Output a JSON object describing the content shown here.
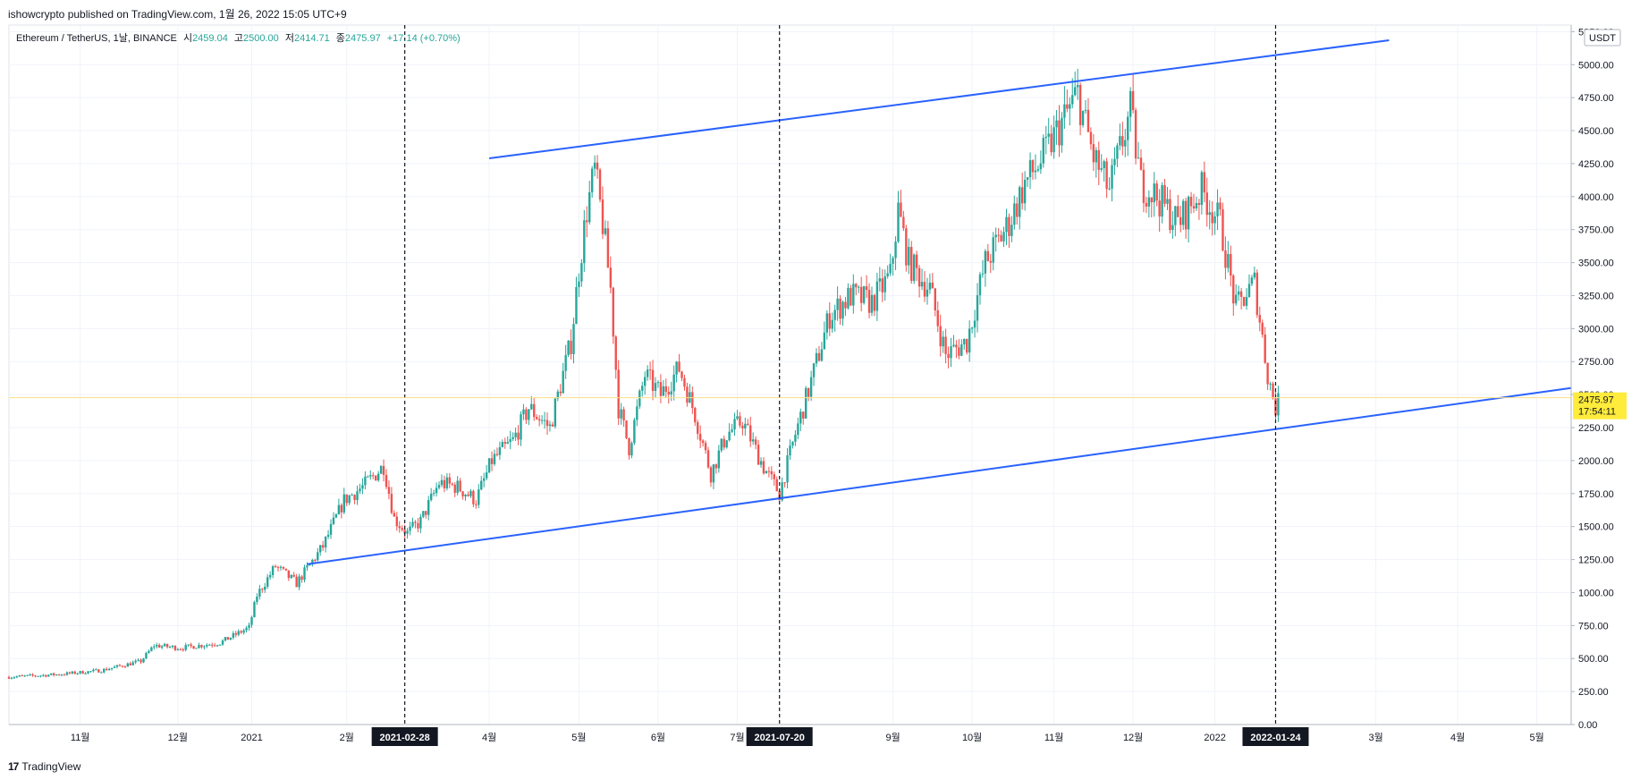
{
  "header": {
    "publisher": "ishowcrypto published on TradingView.com, 1월 26, 2022 15:05 UTC+9"
  },
  "legend": {
    "symbol": "Ethereum / TetherUS, 1날, BINANCE",
    "open_label": "시",
    "open": "2459.04",
    "high_label": "고",
    "high": "2500.00",
    "low_label": "저",
    "low": "2414.71",
    "close_label": "종",
    "close": "2475.97",
    "change": "+17.14 (+0.70%)"
  },
  "price_axis": {
    "currency": "USDT",
    "last_price": "2475.97",
    "countdown": "17:54:11"
  },
  "footer": {
    "brand": "TradingView"
  },
  "colors": {
    "up": "#26a69a",
    "down": "#ef5350",
    "trendline": "#2962ff",
    "last_price_bg": "#ffeb3b",
    "marker_bg": "#131722"
  },
  "chart_data": {
    "type": "candlestick",
    "ylim": [
      0,
      5300
    ],
    "y_ticks": [
      0,
      250,
      500,
      750,
      1000,
      1250,
      1500,
      1750,
      2000,
      2250,
      2500,
      2750,
      3000,
      3250,
      3500,
      3750,
      4000,
      4250,
      4500,
      4750,
      5000,
      5250
    ],
    "y_tick_labels": [
      "0.00",
      "250.00",
      "500.00",
      "750.00",
      "1000.00",
      "1250.00",
      "1500.00",
      "1750.00",
      "2000.00",
      "2250.00",
      "2500.00",
      "2750.00",
      "3000.00",
      "3250.00",
      "3500.00",
      "3750.00",
      "4000.00",
      "4250.00",
      "4500.00",
      "4750.00",
      "5000.00",
      "5250.00"
    ],
    "x_range": [
      "2020-10-01",
      "2022-05-16"
    ],
    "x_ticks": [
      {
        "date": "2020-10-28",
        "label": "11월"
      },
      {
        "date": "2020-12-04",
        "label": "12월"
      },
      {
        "date": "2021-01-01",
        "label": "2021"
      },
      {
        "date": "2021-02-06",
        "label": "2월"
      },
      {
        "date": "2021-04-01",
        "label": "4월"
      },
      {
        "date": "2021-05-05",
        "label": "5월"
      },
      {
        "date": "2021-06-04",
        "label": "6월"
      },
      {
        "date": "2021-07-04",
        "label": "7월"
      },
      {
        "date": "2021-09-01",
        "label": "9월"
      },
      {
        "date": "2021-10-01",
        "label": "10월"
      },
      {
        "date": "2021-11-01",
        "label": "11월"
      },
      {
        "date": "2021-12-01",
        "label": "12월"
      },
      {
        "date": "2022-01-01",
        "label": "2022"
      },
      {
        "date": "2022-03-03",
        "label": "3월"
      },
      {
        "date": "2022-04-03",
        "label": "4월"
      },
      {
        "date": "2022-05-03",
        "label": "5월"
      }
    ],
    "markers": [
      {
        "date": "2021-02-28",
        "label": "2021-02-28"
      },
      {
        "date": "2021-07-20",
        "label": "2021-07-20"
      },
      {
        "date": "2022-01-24",
        "label": "2022-01-24"
      }
    ],
    "trendlines": [
      {
        "x1": "2021-04-01",
        "y1": 4290,
        "x2": "2022-03-08",
        "y2": 5185
      },
      {
        "x1": "2021-01-22",
        "y1": 1215,
        "x2": "2022-05-16",
        "y2": 2550
      }
    ],
    "price_path": [
      [
        "2020-10-01",
        360
      ],
      [
        "2020-10-20",
        380
      ],
      [
        "2020-11-05",
        410
      ],
      [
        "2020-11-20",
        480
      ],
      [
        "2020-11-25",
        600
      ],
      [
        "2020-12-05",
        580
      ],
      [
        "2020-12-20",
        620
      ],
      [
        "2020-12-31",
        735
      ],
      [
        "2021-01-03",
        980
      ],
      [
        "2021-01-10",
        1200
      ],
      [
        "2021-01-18",
        1070
      ],
      [
        "2021-01-28",
        1350
      ],
      [
        "2021-02-05",
        1700
      ],
      [
        "2021-02-12",
        1800
      ],
      [
        "2021-02-20",
        1960
      ],
      [
        "2021-02-24",
        1560
      ],
      [
        "2021-03-01",
        1450
      ],
      [
        "2021-03-06",
        1540
      ],
      [
        "2021-03-13",
        1830
      ],
      [
        "2021-03-20",
        1800
      ],
      [
        "2021-03-27",
        1700
      ],
      [
        "2021-04-02",
        2000
      ],
      [
        "2021-04-10",
        2150
      ],
      [
        "2021-04-16",
        2400
      ],
      [
        "2021-04-24",
        2250
      ],
      [
        "2021-05-02",
        2900
      ],
      [
        "2021-05-05",
        3450
      ],
      [
        "2021-05-08",
        3900
      ],
      [
        "2021-05-11",
        4200
      ],
      [
        "2021-05-14",
        3800
      ],
      [
        "2021-05-17",
        3300
      ],
      [
        "2021-05-20",
        2400
      ],
      [
        "2021-05-24",
        2100
      ],
      [
        "2021-05-30",
        2650
      ],
      [
        "2021-06-05",
        2500
      ],
      [
        "2021-06-12",
        2700
      ],
      [
        "2021-06-18",
        2350
      ],
      [
        "2021-06-24",
        1900
      ],
      [
        "2021-06-30",
        2200
      ],
      [
        "2021-07-06",
        2300
      ],
      [
        "2021-07-14",
        1950
      ],
      [
        "2021-07-20",
        1750
      ],
      [
        "2021-07-26",
        2200
      ],
      [
        "2021-08-01",
        2600
      ],
      [
        "2021-08-08",
        3100
      ],
      [
        "2021-08-16",
        3250
      ],
      [
        "2021-08-24",
        3200
      ],
      [
        "2021-08-31",
        3400
      ],
      [
        "2021-09-03",
        3900
      ],
      [
        "2021-09-07",
        3500
      ],
      [
        "2021-09-15",
        3300
      ],
      [
        "2021-09-21",
        2800
      ],
      [
        "2021-09-29",
        2900
      ],
      [
        "2021-10-06",
        3500
      ],
      [
        "2021-10-15",
        3800
      ],
      [
        "2021-10-21",
        4100
      ],
      [
        "2021-10-28",
        4300
      ],
      [
        "2021-11-05",
        4600
      ],
      [
        "2021-11-10",
        4780
      ],
      [
        "2021-11-16",
        4300
      ],
      [
        "2021-11-22",
        4050
      ],
      [
        "2021-11-30",
        4650
      ],
      [
        "2021-12-04",
        4100
      ],
      [
        "2021-12-10",
        4000
      ],
      [
        "2021-12-18",
        3800
      ],
      [
        "2021-12-27",
        4050
      ],
      [
        "2022-01-03",
        3800
      ],
      [
        "2022-01-09",
        3150
      ],
      [
        "2022-01-16",
        3350
      ],
      [
        "2022-01-21",
        2650
      ],
      [
        "2022-01-24",
        2400
      ],
      [
        "2022-01-26",
        2476
      ]
    ]
  }
}
